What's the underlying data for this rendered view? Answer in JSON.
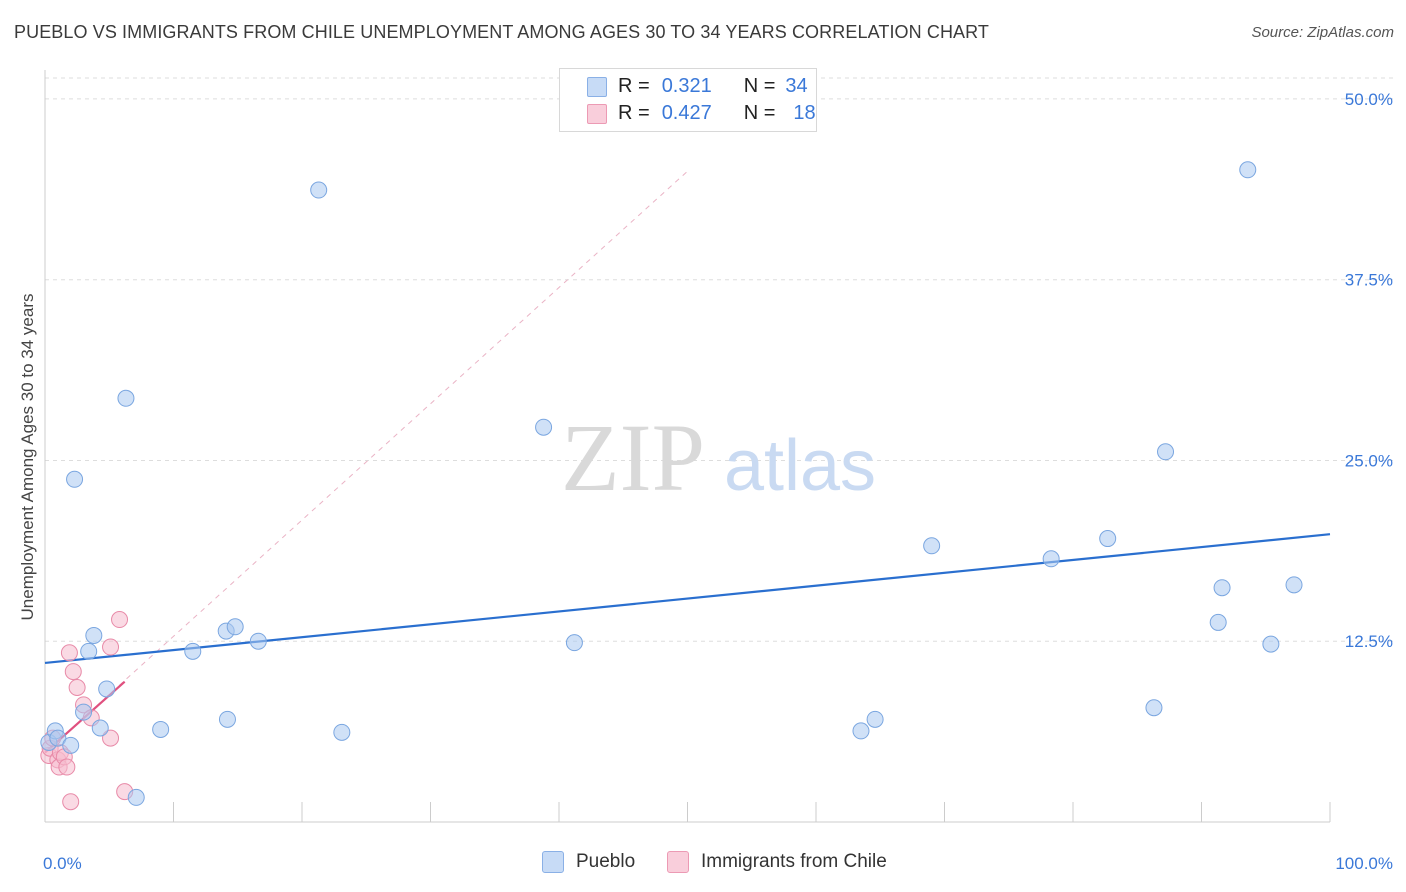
{
  "title": "PUEBLO VS IMMIGRANTS FROM CHILE UNEMPLOYMENT AMONG AGES 30 TO 34 YEARS CORRELATION CHART",
  "source": "Source: ZipAtlas.com",
  "watermark": {
    "zip": "ZIP",
    "atlas": "atlas"
  },
  "legend": {
    "rows": [
      {
        "r_label": "R =",
        "r_value": "0.321",
        "n_label": "N =",
        "n_value": "34"
      },
      {
        "r_label": "R =",
        "r_value": "0.427",
        "n_label": "N =",
        "n_value": "18"
      }
    ]
  },
  "colors": {
    "pueblo_fill": "#aac8f0",
    "pueblo_stroke": "#7aa6e0",
    "pueblo_line": "#2a6fcf",
    "chile_fill": "#f6bccd",
    "chile_stroke": "#e88aa8",
    "chile_line": "#e0507f",
    "axis_text": "#3a78d8",
    "grid": "#dddddd"
  },
  "chart_data": {
    "type": "scatter",
    "title": "PUEBLO VS IMMIGRANTS FROM CHILE UNEMPLOYMENT AMONG AGES 30 TO 34 YEARS CORRELATION CHART",
    "xlabel": "",
    "ylabel": "Unemployment Among Ages 30 to 34 years",
    "xlim": [
      0,
      100
    ],
    "ylim": [
      0,
      52
    ],
    "x_tick_labels": [
      "0.0%",
      "100.0%"
    ],
    "y_ticks": [
      12.5,
      25.0,
      37.5,
      50.0
    ],
    "y_tick_labels": [
      "12.5%",
      "25.0%",
      "37.5%",
      "50.0%"
    ],
    "series": [
      {
        "name": "Pueblo",
        "r": 0.321,
        "n": 34,
        "points": [
          [
            0.3,
            5.5
          ],
          [
            0.8,
            6.3
          ],
          [
            1.0,
            5.8
          ],
          [
            2.0,
            5.3
          ],
          [
            2.3,
            23.7
          ],
          [
            3.0,
            7.6
          ],
          [
            3.4,
            11.8
          ],
          [
            3.8,
            12.9
          ],
          [
            4.3,
            6.5
          ],
          [
            4.8,
            9.2
          ],
          [
            6.3,
            29.3
          ],
          [
            7.1,
            1.7
          ],
          [
            9.0,
            6.4
          ],
          [
            11.5,
            11.8
          ],
          [
            14.1,
            13.2
          ],
          [
            14.2,
            7.1
          ],
          [
            14.8,
            13.5
          ],
          [
            16.6,
            12.5
          ],
          [
            21.3,
            43.7
          ],
          [
            23.1,
            6.2
          ],
          [
            38.8,
            27.3
          ],
          [
            41.2,
            12.4
          ],
          [
            63.5,
            6.3
          ],
          [
            64.6,
            7.1
          ],
          [
            69.0,
            19.1
          ],
          [
            78.3,
            18.2
          ],
          [
            82.7,
            19.6
          ],
          [
            86.3,
            7.9
          ],
          [
            87.2,
            25.6
          ],
          [
            91.3,
            13.8
          ],
          [
            91.6,
            16.2
          ],
          [
            93.6,
            45.1
          ],
          [
            95.4,
            12.3
          ],
          [
            97.2,
            16.4
          ]
        ],
        "trend": {
          "x0": 0,
          "y0": 11.0,
          "x1": 100,
          "y1": 19.9
        }
      },
      {
        "name": "Immigrants from Chile",
        "r": 0.427,
        "n": 18,
        "points": [
          [
            0.3,
            4.6
          ],
          [
            0.4,
            5.1
          ],
          [
            0.6,
            5.8
          ],
          [
            1.0,
            4.3
          ],
          [
            1.1,
            3.8
          ],
          [
            1.2,
            4.8
          ],
          [
            1.5,
            4.5
          ],
          [
            1.7,
            3.8
          ],
          [
            1.9,
            11.7
          ],
          [
            2.0,
            1.4
          ],
          [
            2.2,
            10.4
          ],
          [
            2.5,
            9.3
          ],
          [
            3.0,
            8.1
          ],
          [
            3.6,
            7.2
          ],
          [
            5.1,
            5.8
          ],
          [
            5.1,
            12.1
          ],
          [
            5.8,
            14.0
          ],
          [
            6.2,
            2.1
          ]
        ],
        "trend": {
          "x0": 0,
          "y0": 4.8,
          "x1": 6.2,
          "y1": 9.7
        },
        "trend_extended": {
          "x0": 0,
          "y0": 4.8,
          "x1": 50,
          "y1": 45.0
        }
      }
    ]
  },
  "bottom_legend": {
    "pueblo": "Pueblo",
    "chile": "Immigrants from Chile"
  }
}
